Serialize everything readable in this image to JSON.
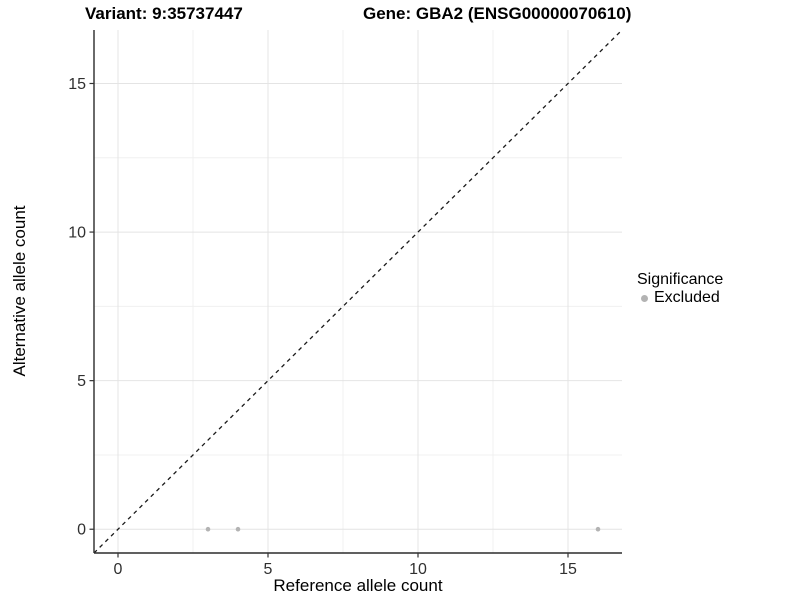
{
  "chart_data": {
    "type": "scatter",
    "titles": [
      "Variant: 9:35737447",
      "Gene: GBA2 (ENSG00000070610)"
    ],
    "xlabel": "Reference allele count",
    "ylabel": "Alternative allele count",
    "xlim": [
      -0.8,
      16.8
    ],
    "ylim": [
      -0.8,
      16.8
    ],
    "x_major_ticks": [
      0,
      5,
      10,
      15
    ],
    "y_major_ticks": [
      0,
      5,
      10,
      15
    ],
    "x_minor_ticks": [
      2.5,
      7.5,
      12.5
    ],
    "y_minor_ticks": [
      2.5,
      7.5,
      12.5
    ],
    "grid": true,
    "series": [
      {
        "name": "Excluded",
        "marker": "circle",
        "color": "#b3b3b3",
        "points": [
          [
            3,
            0
          ],
          [
            4,
            0
          ],
          [
            16,
            0
          ]
        ]
      }
    ],
    "reference_line": {
      "kind": "identity y=x",
      "style": "dashed",
      "color": "#1a1a1a"
    },
    "legend": {
      "title": "Significance",
      "position": "right",
      "entries": [
        {
          "label": "Excluded",
          "color": "#b3b3b3",
          "marker": "circle"
        }
      ]
    },
    "colors": {
      "background": "#ffffff",
      "grid_major": "#e4e4e4",
      "grid_minor": "#f0f0f0",
      "axis_line": "#2b2b2b",
      "tick_mark": "#333333",
      "tick_text": "#303030"
    }
  }
}
